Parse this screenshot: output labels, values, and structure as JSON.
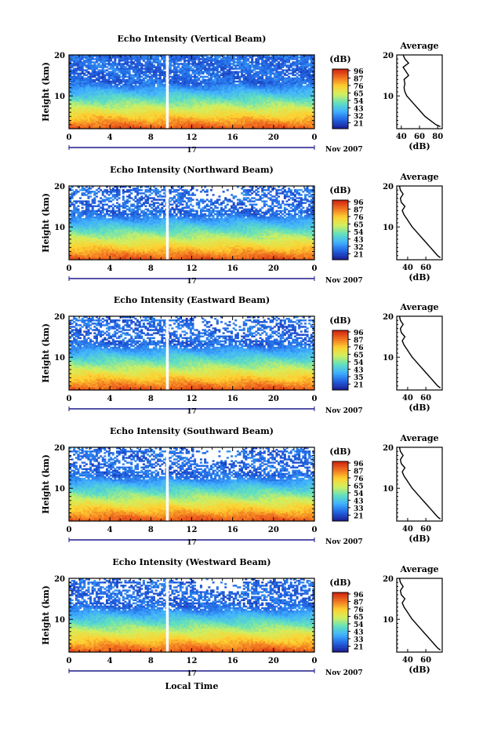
{
  "chart_data": [
    {
      "type": "heatmap",
      "title": "Echo Intensity (Vertical Beam)",
      "ylabel": "Height (km)",
      "ylim": [
        2,
        20
      ],
      "xlim": [
        0,
        24
      ],
      "x_ticks": [
        "0",
        "4",
        "8",
        "12",
        "16",
        "20",
        "0"
      ],
      "y_ticks": [
        "10",
        "20"
      ],
      "date_day": "17",
      "date_month": "Nov 2007",
      "colorbar": {
        "unit": "(dB)",
        "ticks": [
          "96",
          "87",
          "76",
          "65",
          "54",
          "43",
          "32",
          "21"
        ]
      },
      "profile": {
        "title": "Average",
        "xlabel": "(dB)",
        "x_ticks": [
          "40",
          "60",
          "80"
        ],
        "y_ticks": [
          "10",
          "20"
        ],
        "xlim": [
          35,
          85
        ],
        "heights": [
          2.5,
          3,
          4,
          5,
          6,
          7,
          8,
          9,
          10,
          11,
          12,
          13,
          14,
          15,
          16,
          17,
          18,
          19,
          20
        ],
        "values": [
          83,
          78,
          72,
          66,
          62,
          58,
          54,
          50,
          46,
          44,
          43,
          44,
          43,
          48,
          45,
          42,
          48,
          44,
          42
        ]
      }
    },
    {
      "type": "heatmap",
      "title": "Echo Intensity (Northward Beam)",
      "ylabel": "Height (km)",
      "ylim": [
        2,
        20
      ],
      "xlim": [
        0,
        24
      ],
      "x_ticks": [
        "0",
        "4",
        "8",
        "12",
        "16",
        "20",
        "0"
      ],
      "y_ticks": [
        "10",
        "20"
      ],
      "date_day": "17",
      "date_month": "Nov 2007",
      "colorbar": {
        "unit": "(dB)",
        "ticks": [
          "96",
          "87",
          "76",
          "65",
          "54",
          "43",
          "32",
          "21"
        ]
      },
      "profile": {
        "title": "Average",
        "xlabel": "(dB)",
        "x_ticks": [
          "40",
          "60"
        ],
        "y_ticks": [
          "10",
          "20"
        ],
        "xlim": [
          28,
          78
        ],
        "heights": [
          2.5,
          3,
          4,
          5,
          6,
          7,
          8,
          9,
          10,
          11,
          12,
          13,
          14,
          15,
          16,
          17,
          18,
          19,
          20
        ],
        "values": [
          76,
          73,
          69,
          65,
          61,
          57,
          53,
          49,
          45,
          42,
          39,
          36,
          34,
          37,
          33,
          32,
          35,
          32,
          31
        ]
      }
    },
    {
      "type": "heatmap",
      "title": "Echo Intensity (Eastward Beam)",
      "ylabel": "Height (km)",
      "ylim": [
        2,
        20
      ],
      "xlim": [
        0,
        24
      ],
      "x_ticks": [
        "0",
        "4",
        "8",
        "12",
        "16",
        "20",
        "0"
      ],
      "y_ticks": [
        "10",
        "20"
      ],
      "date_day": "17",
      "date_month": "Nov 2007",
      "colorbar": {
        "unit": "(dB)",
        "ticks": [
          "96",
          "87",
          "76",
          "65",
          "54",
          "43",
          "35",
          "21"
        ]
      },
      "profile": {
        "title": "Average",
        "xlabel": "(dB)",
        "x_ticks": [
          "40",
          "60"
        ],
        "y_ticks": [
          "10",
          "20"
        ],
        "xlim": [
          28,
          78
        ],
        "heights": [
          2.5,
          3,
          4,
          5,
          6,
          7,
          8,
          9,
          10,
          11,
          12,
          13,
          14,
          15,
          16,
          17,
          18,
          19,
          20
        ],
        "values": [
          76,
          73,
          69,
          65,
          61,
          57,
          53,
          49,
          45,
          42,
          39,
          36,
          34,
          37,
          33,
          32,
          35,
          32,
          31
        ]
      }
    },
    {
      "type": "heatmap",
      "title": "Echo Intensity (Southward Beam)",
      "ylabel": "Height (km)",
      "ylim": [
        2,
        20
      ],
      "xlim": [
        0,
        24
      ],
      "x_ticks": [
        "0",
        "4",
        "8",
        "12",
        "16",
        "20",
        "0"
      ],
      "y_ticks": [
        "10",
        "20"
      ],
      "date_day": "17",
      "date_month": "Nov 2007",
      "colorbar": {
        "unit": "(dB)",
        "ticks": [
          "96",
          "87",
          "76",
          "65",
          "54",
          "43",
          "33",
          "21"
        ]
      },
      "profile": {
        "title": "Average",
        "xlabel": "(dB)",
        "x_ticks": [
          "40",
          "60"
        ],
        "y_ticks": [
          "10",
          "20"
        ],
        "xlim": [
          28,
          78
        ],
        "heights": [
          2.5,
          3,
          4,
          5,
          6,
          7,
          8,
          9,
          10,
          11,
          12,
          13,
          14,
          15,
          16,
          17,
          18,
          19,
          20
        ],
        "values": [
          76,
          73,
          69,
          65,
          61,
          57,
          53,
          49,
          45,
          42,
          39,
          36,
          34,
          37,
          33,
          32,
          35,
          32,
          31
        ]
      }
    },
    {
      "type": "heatmap",
      "title": "Echo Intensity (Westward Beam)",
      "ylabel": "Height (km)",
      "ylim": [
        2,
        20
      ],
      "xlim": [
        0,
        24
      ],
      "x_ticks": [
        "0",
        "4",
        "8",
        "12",
        "16",
        "20",
        "0"
      ],
      "y_ticks": [
        "10",
        "20"
      ],
      "date_day": "17",
      "date_month": "Nov 2007",
      "colorbar": {
        "unit": "(dB)",
        "ticks": [
          "96",
          "87",
          "76",
          "65",
          "54",
          "43",
          "33",
          "21"
        ]
      },
      "profile": {
        "title": "Average",
        "xlabel": "(dB)",
        "x_ticks": [
          "40",
          "60"
        ],
        "y_ticks": [
          "10",
          "20"
        ],
        "xlim": [
          28,
          78
        ],
        "heights": [
          2.5,
          3,
          4,
          5,
          6,
          7,
          8,
          9,
          10,
          11,
          12,
          13,
          14,
          15,
          16,
          17,
          18,
          19,
          20
        ],
        "values": [
          76,
          73,
          69,
          65,
          61,
          57,
          53,
          49,
          45,
          42,
          39,
          36,
          34,
          37,
          33,
          32,
          35,
          32,
          31
        ]
      }
    }
  ],
  "xlabel": "Local Time",
  "colors": {
    "scale": [
      "#1b1b8f",
      "#2060e0",
      "#40b0ff",
      "#60e0c0",
      "#d0f060",
      "#ffd030",
      "#f07020",
      "#d02010"
    ],
    "date_axis": "#1a1a8a"
  }
}
